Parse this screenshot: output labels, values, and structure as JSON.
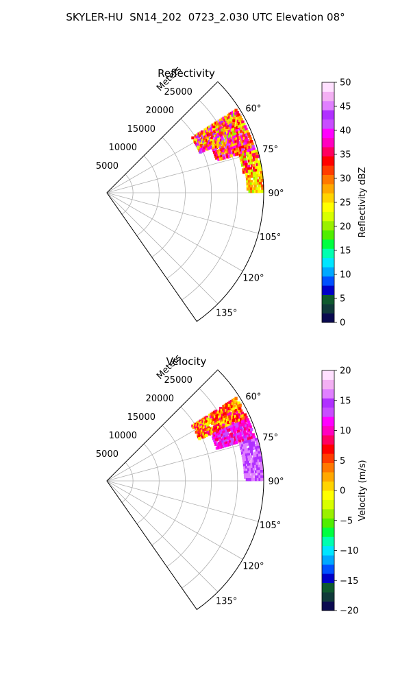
{
  "title": "SKYLER-HU  SN14_202  0723_2.030 UTC Elevation 08°",
  "palette": {
    "reflectivity": [
      "#0a0a50",
      "#103a3a",
      "#0f5a2e",
      "#0000c8",
      "#0050ff",
      "#00a8ff",
      "#00e6ff",
      "#00ffb0",
      "#00ff40",
      "#50ee00",
      "#9af000",
      "#d8ff00",
      "#ffff00",
      "#ffd400",
      "#ffa800",
      "#ff7800",
      "#ff3c00",
      "#ff0000",
      "#ff0060",
      "#ff00c0",
      "#ff00ff",
      "#c84cff",
      "#b030ff",
      "#e080ff",
      "#f3b0f3",
      "#ffe0ff"
    ],
    "velocity": [
      "#0a0a50",
      "#103a3a",
      "#0f5a2e",
      "#0000c8",
      "#0050ff",
      "#00a8ff",
      "#00e6ff",
      "#00ffb0",
      "#00ff40",
      "#50ee00",
      "#9af000",
      "#d8ff00",
      "#ffff00",
      "#ffd400",
      "#ffa800",
      "#ff7800",
      "#ff3c00",
      "#ff0000",
      "#ff0060",
      "#ff00c0",
      "#ff00ff",
      "#c84cff",
      "#b030ff",
      "#e080ff",
      "#f3b0f3",
      "#ffe0ff"
    ]
  },
  "chart_data": [
    {
      "type": "heatmap",
      "projection": "polar-sector",
      "title": "Reflectivity",
      "radial_label": "Meters",
      "radial_ticks": [
        5000,
        10000,
        15000,
        20000,
        25000
      ],
      "angle_ticks": [
        "60°",
        "75°",
        "90°",
        "105°",
        "120°",
        "135°"
      ],
      "angle_range_deg": [
        45,
        145
      ],
      "radius_max": 30000,
      "grid": true,
      "colorbar": {
        "label": "Reflectivity dBZ",
        "range": [
          0,
          50
        ],
        "ticks": [
          0,
          5,
          10,
          15,
          20,
          25,
          30,
          35,
          40,
          45,
          50
        ]
      },
      "echoes": [
        {
          "az_deg": [
            57,
            67
          ],
          "range_m": [
            19500,
            29500
          ],
          "value_min": 20,
          "value_max": 45
        },
        {
          "az_deg": [
            67,
            74
          ],
          "range_m": [
            22000,
            29700
          ],
          "value_min": 25,
          "value_max": 42
        },
        {
          "az_deg": [
            74,
            82
          ],
          "range_m": [
            26500,
            29800
          ],
          "value_min": 20,
          "value_max": 38
        },
        {
          "az_deg": [
            82,
            90
          ],
          "range_m": [
            27000,
            29900
          ],
          "value_min": 20,
          "value_max": 32
        }
      ]
    },
    {
      "type": "heatmap",
      "projection": "polar-sector",
      "title": "Velocity",
      "radial_label": "Meters",
      "radial_ticks": [
        5000,
        10000,
        15000,
        20000,
        25000
      ],
      "angle_ticks": [
        "60°",
        "75°",
        "90°",
        "105°",
        "120°",
        "135°"
      ],
      "angle_range_deg": [
        45,
        145
      ],
      "radius_max": 30000,
      "grid": true,
      "colorbar": {
        "label": "Velocity (m/s)",
        "range": [
          -20,
          20
        ],
        "ticks": [
          -20,
          -15,
          -10,
          -5,
          0,
          5,
          10,
          15,
          20
        ]
      },
      "echoes": [
        {
          "az_deg": [
            57,
            66
          ],
          "range_m": [
            19500,
            29500
          ],
          "value_min": -2,
          "value_max": 10
        },
        {
          "az_deg": [
            66,
            74
          ],
          "range_m": [
            22000,
            29700
          ],
          "value_min": 8,
          "value_max": 14
        },
        {
          "az_deg": [
            74,
            90
          ],
          "range_m": [
            26500,
            29900
          ],
          "value_min": 14,
          "value_max": 17
        }
      ]
    }
  ]
}
